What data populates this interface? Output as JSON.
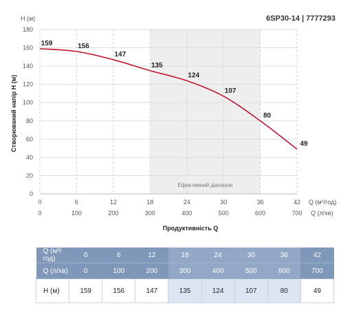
{
  "chart_data": {
    "type": "line",
    "title": "6SP30-14 | 7777293",
    "ylabel_top": "H (м)",
    "ylabel": "Створюваний напір Н (м)",
    "xlabel": "Продуктивність Q",
    "x_units_primary": "Q (м³/год)",
    "x_units_secondary": "Q (л/хв)",
    "x": [
      0,
      6,
      12,
      18,
      24,
      30,
      36,
      42
    ],
    "x_secondary": [
      0,
      100,
      200,
      300,
      400,
      500,
      600,
      700
    ],
    "series": [
      {
        "values": [
          159,
          156,
          147,
          135,
          124,
          107,
          80,
          49
        ],
        "color": "#c0152f"
      }
    ],
    "data_labels": [
      "159",
      "156",
      "147",
      "135",
      "124",
      "107",
      "80",
      "49"
    ],
    "xlim": [
      0,
      42
    ],
    "ylim": [
      0,
      180
    ],
    "yticks": [
      0,
      20,
      40,
      60,
      80,
      100,
      120,
      140,
      160,
      180
    ],
    "grid": true,
    "efficient_range": {
      "label": "Ефективний діапазон",
      "from": 18,
      "to": 36,
      "color": "#eeeeee"
    }
  },
  "table": {
    "row_q_h_label": "Q (м³/год)",
    "row_q_min_label": "Q (л/хв)",
    "row_h_label": "H (м)",
    "q_h": [
      "0",
      "6",
      "12",
      "18",
      "24",
      "30",
      "36",
      "42"
    ],
    "q_min": [
      "0",
      "100",
      "200",
      "300",
      "400",
      "500",
      "600",
      "700"
    ],
    "h": [
      "159",
      "156",
      "147",
      "135",
      "124",
      "107",
      "80",
      "49"
    ],
    "band_columns": [
      3,
      4,
      5,
      6
    ],
    "header_color": "#7f97b8",
    "highlight_color": "#dce6f3"
  }
}
